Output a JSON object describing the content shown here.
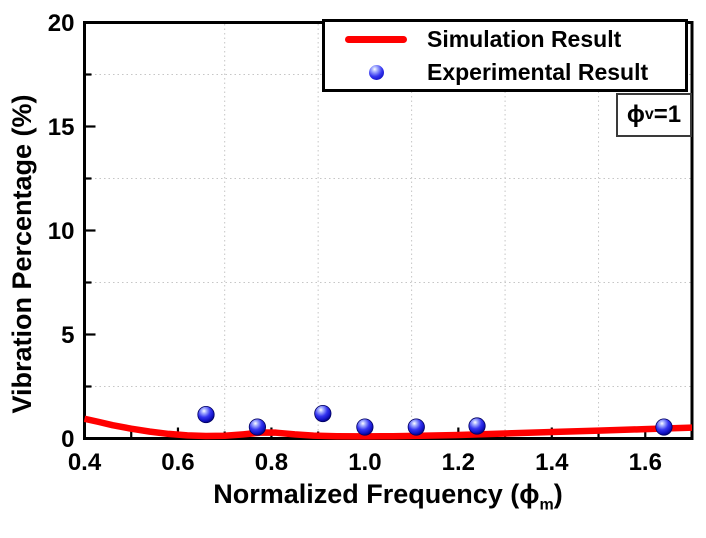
{
  "chart_data": {
    "type": "line",
    "title": "",
    "xlabel": {
      "pre": "Normalized Frequency (",
      "sym": "ϕ",
      "sub": "m",
      "post": ")"
    },
    "ylabel": "Vibration Percentage (%)",
    "xlim": [
      0.4,
      1.7
    ],
    "ylim": [
      0,
      20
    ],
    "x_major_ticks": [
      0.4,
      0.6,
      0.8,
      1.0,
      1.2,
      1.4,
      1.6
    ],
    "x_minor_ticks": [
      0.5,
      0.7,
      0.9,
      1.1,
      1.3,
      1.5,
      1.7
    ],
    "y_major_ticks": [
      0,
      5,
      10,
      15,
      20
    ],
    "y_minor_ticks": [
      2.5,
      7.5,
      12.5,
      17.5
    ],
    "grid": {
      "style": "dotted",
      "color": "#c6c6c6",
      "vertical_at": [
        0.7,
        0.9,
        1.1,
        1.3,
        1.5
      ],
      "horizontal_at": [
        2.5,
        7.5,
        12.5,
        17.5
      ]
    },
    "series": [
      {
        "name": "Simulation Result",
        "type": "line",
        "color": "#ff0000",
        "x": [
          0.4,
          0.43,
          0.46,
          0.5,
          0.54,
          0.58,
          0.62,
          0.66,
          0.7,
          0.74,
          0.78,
          0.81,
          0.85,
          0.89,
          0.94,
          1.0,
          1.06,
          1.12,
          1.2,
          1.3,
          1.4,
          1.5,
          1.6,
          1.7
        ],
        "y": [
          0.95,
          0.8,
          0.64,
          0.47,
          0.33,
          0.22,
          0.15,
          0.12,
          0.13,
          0.2,
          0.29,
          0.28,
          0.2,
          0.14,
          0.11,
          0.1,
          0.11,
          0.13,
          0.17,
          0.24,
          0.31,
          0.38,
          0.45,
          0.52
        ]
      },
      {
        "name": "Experimental Result",
        "type": "scatter",
        "color": "#2a2ae0",
        "x": [
          0.66,
          0.77,
          0.91,
          1.0,
          1.11,
          1.24,
          1.64
        ],
        "y": [
          1.15,
          0.55,
          1.2,
          0.55,
          0.55,
          0.6,
          0.55
        ]
      }
    ],
    "annotation": {
      "sym": "ϕ",
      "sub": "v",
      "post": "=1"
    },
    "legend_position": "top-right"
  },
  "legend": {
    "items": [
      {
        "label": "Simulation Result",
        "marker": "line"
      },
      {
        "label": "Experimental Result",
        "marker": "dot"
      }
    ]
  },
  "colors": {
    "simulation_line": "#ff0000",
    "experimental_dot": "#2a2ae0",
    "axis": "#000000",
    "grid": "#c6c6c6",
    "background": "#ffffff"
  }
}
